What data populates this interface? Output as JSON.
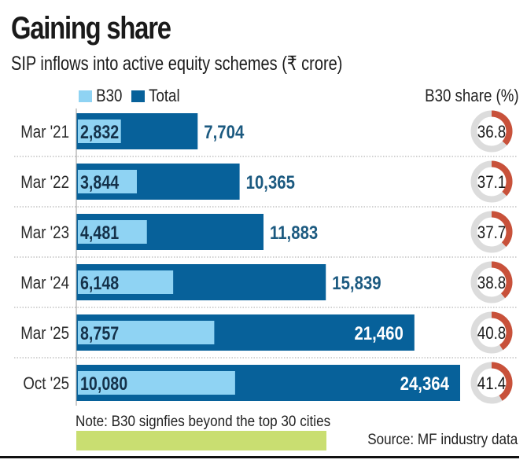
{
  "colors": {
    "b30": "#8fd3f3",
    "total": "#07619a",
    "donut_arc": "#c8513a",
    "donut_track": "#dcdcdc",
    "value_outside": "#1c5a80",
    "value_inside": "#ffffff",
    "note_highlight": "#c9de71"
  },
  "header": {
    "title": "Gaining share",
    "subtitle": "SIP inflows into active equity schemes (₹ crore)"
  },
  "legend": {
    "b30_label": "B30",
    "total_label": "Total"
  },
  "share_header": "B30 share (%)",
  "footer": {
    "note": "Note: B30 signfies beyond the top 30 cities",
    "source": "Source: MF industry data"
  },
  "chart_data": {
    "type": "bar",
    "orientation": "horizontal",
    "title": "Gaining share",
    "subtitle": "SIP inflows into active equity schemes (₹ crore)",
    "xlabel": "",
    "ylabel": "",
    "categories": [
      "Mar '21",
      "Mar '22",
      "Mar '23",
      "Mar '24",
      "Mar '25",
      "Oct '25"
    ],
    "series": [
      {
        "name": "B30",
        "values": [
          2832,
          3844,
          4481,
          6148,
          8757,
          10080
        ],
        "labels": [
          "2,832",
          "3,844",
          "4,481",
          "6,148",
          "8,757",
          "10,080"
        ]
      },
      {
        "name": "Total",
        "values": [
          7704,
          10365,
          11883,
          15839,
          21460,
          24364
        ],
        "labels": [
          "7,704",
          "10,365",
          "11,883",
          "15,839",
          "21,460",
          "24,364"
        ]
      }
    ],
    "b30_share_pct": {
      "name": "B30 share (%)",
      "type": "donut",
      "values": [
        36.8,
        37.1,
        37.7,
        38.8,
        40.8,
        41.4
      ],
      "labels": [
        "36.8",
        "37.1",
        "37.7",
        "38.8",
        "40.8",
        "41.4"
      ]
    },
    "xlim": [
      0,
      24364
    ],
    "grid": false,
    "legend": "top-left",
    "total_label_inside_for": [
      "Mar '25",
      "Oct '25"
    ]
  }
}
